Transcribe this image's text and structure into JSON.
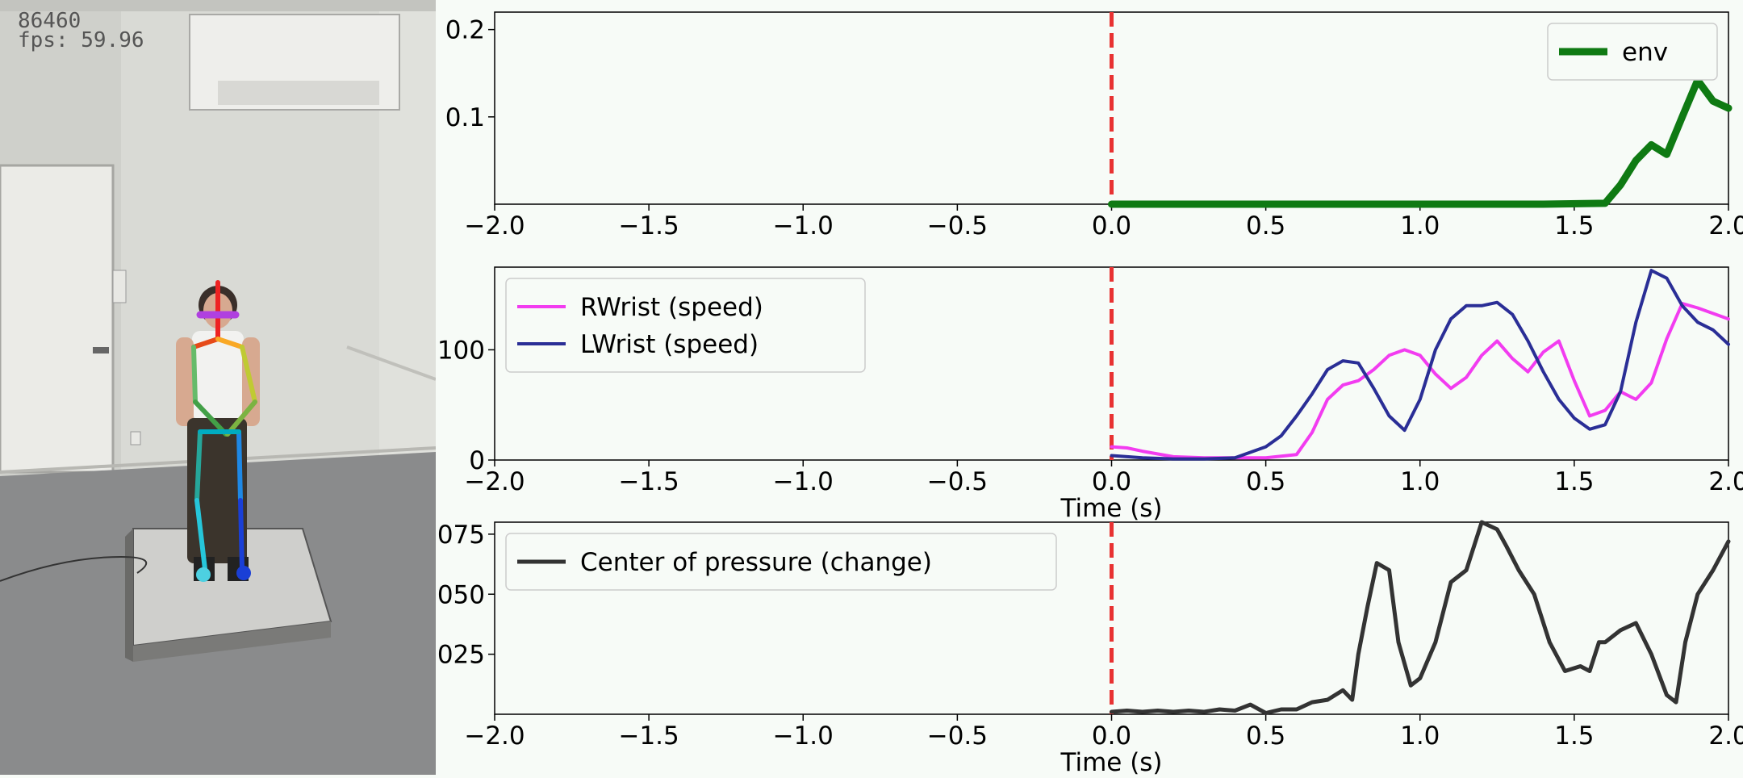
{
  "overlay": {
    "frame": "86460",
    "fps": "fps: 59.96"
  },
  "chart_data": [
    {
      "type": "line",
      "title": "",
      "xlabel": "",
      "ylabel": "",
      "xlim": [
        -2.0,
        2.0
      ],
      "ylim": [
        0,
        0.22
      ],
      "xticks": [
        "−2.0",
        "−1.5",
        "−1.0",
        "−0.5",
        "0.0",
        "0.5",
        "1.0",
        "1.5",
        "2.0"
      ],
      "yticks": [
        {
          "v": 0.1,
          "label": "0.1"
        },
        {
          "v": 0.2,
          "label": "0.2"
        }
      ],
      "legend": "top-right",
      "event_line_x": 0.0,
      "series": [
        {
          "name": "env",
          "color": "#0f7a13",
          "width": 9,
          "x": [
            0.0,
            0.5,
            1.0,
            1.4,
            1.6,
            1.65,
            1.7,
            1.75,
            1.8,
            1.85,
            1.9,
            1.95,
            2.0
          ],
          "y": [
            0.0,
            0.0,
            0.0,
            0.0,
            0.001,
            0.022,
            0.05,
            0.068,
            0.057,
            0.1,
            0.142,
            0.118,
            0.11
          ]
        }
      ]
    },
    {
      "type": "line",
      "title": "",
      "xlabel": "Time (s)",
      "ylabel": "",
      "xlim": [
        -2.0,
        2.0
      ],
      "ylim": [
        0,
        175
      ],
      "xticks": [
        "−2.0",
        "−1.5",
        "−1.0",
        "−0.5",
        "0.0",
        "0.5",
        "1.0",
        "1.5",
        "2.0"
      ],
      "yticks": [
        {
          "v": 0,
          "label": "0"
        },
        {
          "v": 100,
          "label": "100"
        }
      ],
      "legend": "top-left",
      "event_line_x": 0.0,
      "series": [
        {
          "name": "RWrist (speed)",
          "color": "#f23cf0",
          "width": 4,
          "x": [
            0.0,
            0.05,
            0.1,
            0.2,
            0.3,
            0.4,
            0.5,
            0.6,
            0.65,
            0.7,
            0.75,
            0.8,
            0.85,
            0.9,
            0.95,
            1.0,
            1.05,
            1.1,
            1.15,
            1.2,
            1.25,
            1.3,
            1.35,
            1.4,
            1.45,
            1.5,
            1.55,
            1.6,
            1.65,
            1.7,
            1.75,
            1.8,
            1.85,
            1.9,
            1.95,
            2.0
          ],
          "y": [
            12,
            11,
            8,
            3,
            2,
            2,
            2,
            5,
            25,
            55,
            68,
            72,
            82,
            95,
            100,
            95,
            78,
            65,
            75,
            95,
            108,
            92,
            80,
            98,
            108,
            72,
            40,
            45,
            62,
            55,
            70,
            110,
            142,
            138,
            133,
            128
          ]
        },
        {
          "name": "LWrist (speed)",
          "color": "#2a2e96",
          "width": 4,
          "x": [
            0.0,
            0.05,
            0.1,
            0.2,
            0.3,
            0.4,
            0.5,
            0.55,
            0.6,
            0.65,
            0.7,
            0.75,
            0.8,
            0.85,
            0.9,
            0.95,
            1.0,
            1.05,
            1.1,
            1.15,
            1.2,
            1.25,
            1.3,
            1.35,
            1.4,
            1.45,
            1.5,
            1.55,
            1.6,
            1.65,
            1.7,
            1.75,
            1.8,
            1.85,
            1.9,
            1.95,
            2.0
          ],
          "y": [
            4,
            3,
            2,
            1,
            1,
            2,
            12,
            22,
            40,
            60,
            82,
            90,
            88,
            65,
            40,
            27,
            55,
            100,
            128,
            140,
            140,
            143,
            132,
            108,
            80,
            55,
            38,
            28,
            32,
            62,
            125,
            172,
            165,
            140,
            125,
            118,
            105
          ]
        }
      ]
    },
    {
      "type": "line",
      "title": "",
      "xlabel": "Time (s)",
      "ylabel": "",
      "xlim": [
        -2.0,
        2.0
      ],
      "ylim": [
        0,
        0.08
      ],
      "xticks": [
        "−2.0",
        "−1.5",
        "−1.0",
        "−0.5",
        "0.0",
        "0.5",
        "1.0",
        "1.5",
        "2.0"
      ],
      "yticks": [
        {
          "v": 0.025,
          "label": "025"
        },
        {
          "v": 0.05,
          "label": "050"
        },
        {
          "v": 0.075,
          "label": "075"
        }
      ],
      "legend": "top-left",
      "event_line_x": 0.0,
      "series": [
        {
          "name": "Center of pressure (change)",
          "color": "#333333",
          "width": 5,
          "x": [
            0.0,
            0.05,
            0.1,
            0.15,
            0.2,
            0.25,
            0.3,
            0.35,
            0.4,
            0.45,
            0.5,
            0.55,
            0.6,
            0.65,
            0.7,
            0.75,
            0.78,
            0.8,
            0.83,
            0.86,
            0.9,
            0.93,
            0.97,
            1.0,
            1.05,
            1.1,
            1.15,
            1.2,
            1.25,
            1.28,
            1.32,
            1.37,
            1.42,
            1.47,
            1.52,
            1.55,
            1.58,
            1.6,
            1.65,
            1.7,
            1.75,
            1.8,
            1.83,
            1.86,
            1.9,
            1.95,
            2.0
          ],
          "y": [
            0.001,
            0.0015,
            0.001,
            0.0015,
            0.001,
            0.0015,
            0.001,
            0.002,
            0.0015,
            0.004,
            0.0005,
            0.002,
            0.002,
            0.005,
            0.006,
            0.01,
            0.006,
            0.025,
            0.045,
            0.063,
            0.06,
            0.03,
            0.012,
            0.015,
            0.03,
            0.055,
            0.06,
            0.08,
            0.077,
            0.07,
            0.06,
            0.05,
            0.03,
            0.018,
            0.02,
            0.018,
            0.03,
            0.03,
            0.035,
            0.038,
            0.025,
            0.008,
            0.005,
            0.03,
            0.05,
            0.06,
            0.072
          ]
        }
      ]
    }
  ]
}
